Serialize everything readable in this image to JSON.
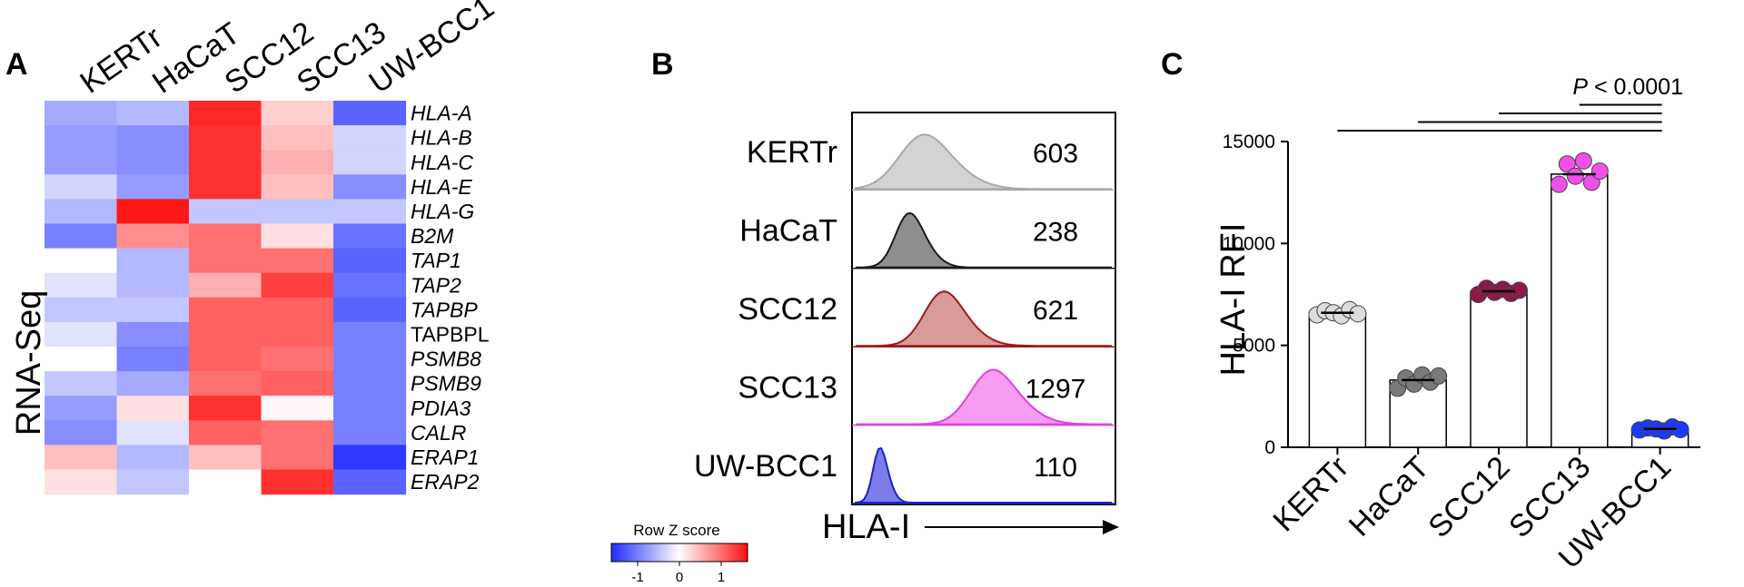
{
  "panels": {
    "a": "A",
    "b": "B",
    "c": "C"
  },
  "heatmap": {
    "columns": [
      "KERTr",
      "HaCaT",
      "SCC12",
      "SCC13",
      "UW-BCC1"
    ],
    "ylabel": "RNA-Seq",
    "rows": [
      {
        "gene": "HLA-A",
        "italic": true,
        "z": [
          -0.6,
          -0.5,
          1.35,
          0.3,
          -1.1
        ]
      },
      {
        "gene": "HLA-B",
        "italic": true,
        "z": [
          -0.7,
          -0.8,
          1.3,
          0.4,
          -0.3
        ]
      },
      {
        "gene": "HLA-C",
        "italic": true,
        "z": [
          -0.7,
          -0.8,
          1.3,
          0.5,
          -0.3
        ]
      },
      {
        "gene": "HLA-E",
        "italic": true,
        "z": [
          -0.3,
          -0.7,
          1.3,
          0.4,
          -0.8
        ]
      },
      {
        "gene": "HLA-G",
        "italic": true,
        "z": [
          -0.5,
          1.45,
          -0.4,
          -0.4,
          -0.4
        ]
      },
      {
        "gene": "B2M",
        "italic": true,
        "z": [
          -0.9,
          0.7,
          0.9,
          0.2,
          -1.0
        ]
      },
      {
        "gene": "TAP1",
        "italic": true,
        "z": [
          0.0,
          -0.5,
          0.9,
          0.9,
          -1.1
        ]
      },
      {
        "gene": "TAP2",
        "italic": true,
        "z": [
          -0.2,
          -0.5,
          0.5,
          1.2,
          -1.0
        ]
      },
      {
        "gene": "TAPBP",
        "italic": true,
        "z": [
          -0.4,
          -0.4,
          1.0,
          1.0,
          -1.1
        ]
      },
      {
        "gene": "TAPBPL",
        "italic": false,
        "z": [
          -0.2,
          -0.8,
          1.0,
          1.0,
          -0.9
        ]
      },
      {
        "gene": "PSMB8",
        "italic": true,
        "z": [
          0.0,
          -0.9,
          1.0,
          0.9,
          -0.9
        ]
      },
      {
        "gene": "PSMB9",
        "italic": true,
        "z": [
          -0.4,
          -0.6,
          0.9,
          1.0,
          -0.9
        ]
      },
      {
        "gene": "PDIA3",
        "italic": true,
        "z": [
          -0.7,
          0.2,
          1.3,
          0.05,
          -0.9
        ]
      },
      {
        "gene": "CALR",
        "italic": true,
        "z": [
          -0.8,
          -0.2,
          1.0,
          0.9,
          -0.9
        ]
      },
      {
        "gene": "ERAP1",
        "italic": true,
        "z": [
          0.4,
          -0.5,
          0.4,
          0.9,
          -1.4
        ]
      },
      {
        "gene": "ERAP2",
        "italic": true,
        "z": [
          0.2,
          -0.4,
          0.0,
          1.3,
          -1.1
        ]
      }
    ],
    "legend": {
      "title": "Row Z score",
      "ticks": [
        "-1",
        "0",
        "1"
      ],
      "low_color": "#1f2bff",
      "mid_color": "#ffffff",
      "high_color": "#ff1010"
    }
  },
  "histograms": {
    "xlabel": "HLA-I",
    "samples": [
      {
        "name": "KERTr",
        "mfi": "603",
        "color": "#a8a8a8",
        "fill": "#d3d3d3",
        "peak": 0.25,
        "width": 0.09
      },
      {
        "name": "HaCaT",
        "mfi": "238",
        "color": "#1a1a1a",
        "fill": "#8e8e8e",
        "peak": 0.2,
        "width": 0.05
      },
      {
        "name": "SCC12",
        "mfi": "621",
        "color": "#9c1a1a",
        "fill": "#d99a9a",
        "peak": 0.33,
        "width": 0.07
      },
      {
        "name": "SCC13",
        "mfi": "1297",
        "color": "#e040e0",
        "fill": "#f79cf0",
        "peak": 0.52,
        "width": 0.08
      },
      {
        "name": "UW-BCC1",
        "mfi": "110",
        "color": "#2020c8",
        "fill": "#7c7ce8",
        "peak": 0.09,
        "width": 0.025
      }
    ]
  },
  "chart_data": {
    "type": "bar",
    "title": "",
    "xlabel": "",
    "ylabel": "HLA-I RFI",
    "ylim": [
      0,
      15000
    ],
    "yticks": [
      0,
      5000,
      10000,
      15000
    ],
    "categories": [
      "KERTr",
      "HaCaT",
      "SCC12",
      "SCC13",
      "UW-BCC1"
    ],
    "values": [
      6600,
      3300,
      7650,
      13400,
      900
    ],
    "points": [
      [
        6500,
        6700,
        6600,
        6450,
        6750,
        6550
      ],
      [
        2900,
        3400,
        3100,
        3550,
        3200,
        3500
      ],
      [
        7500,
        7800,
        7600,
        7750,
        7550,
        7700
      ],
      [
        12900,
        13900,
        13300,
        14050,
        13000,
        13550
      ],
      [
        850,
        950,
        900,
        800,
        1000,
        870
      ]
    ],
    "point_fill": [
      "#dcdcdc",
      "#7a7a7a",
      "#8a1a4a",
      "#f050e8",
      "#1a3aff"
    ],
    "significance": "P < 0.0001",
    "comparisons": [
      [
        "KERTr",
        "UW-BCC1"
      ],
      [
        "HaCaT",
        "UW-BCC1"
      ],
      [
        "SCC12",
        "UW-BCC1"
      ],
      [
        "SCC13",
        "UW-BCC1"
      ]
    ]
  }
}
